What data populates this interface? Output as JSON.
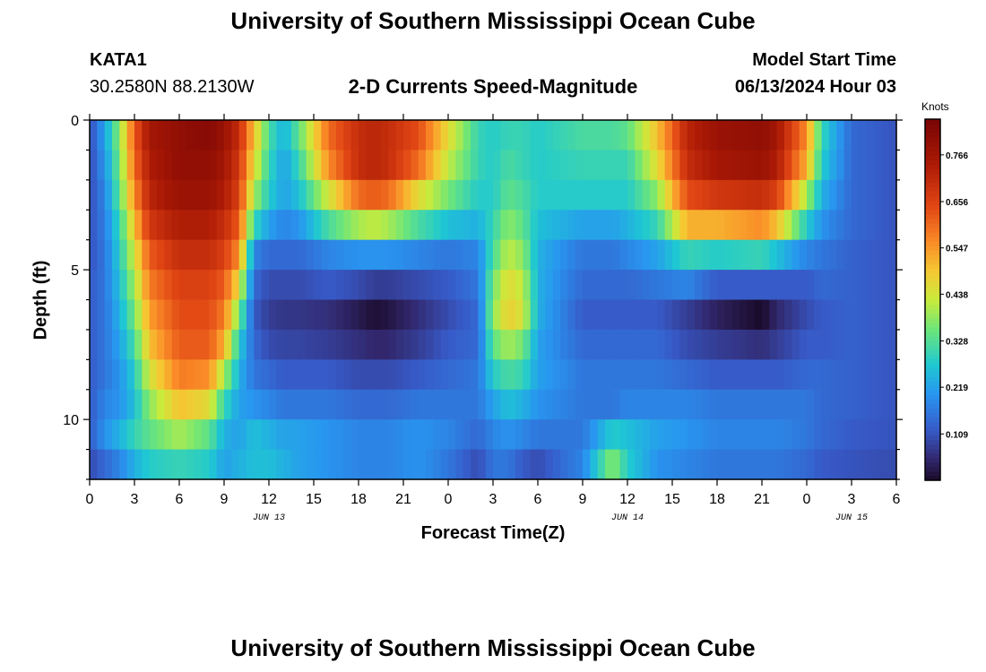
{
  "header": {
    "title_top": "University of Southern Mississippi Ocean Cube",
    "title_bottom": "University of Southern Mississippi Ocean Cube",
    "station_id": "KATA1",
    "station_coords": "30.2580N  88.2130W",
    "model_start_label": "Model Start Time",
    "model_start_value": "06/13/2024 Hour 03"
  },
  "chart_data": {
    "type": "heatmap",
    "title": "2-D Currents Speed-Magnitude",
    "xlabel": "Forecast Time(Z)",
    "ylabel": "Depth (ft)",
    "x_hours_range": [
      0,
      54
    ],
    "x_tick_labels": [
      "0",
      "3",
      "6",
      "9",
      "12",
      "15",
      "18",
      "21",
      "0",
      "3",
      "6",
      "9",
      "12",
      "15",
      "18",
      "21",
      "0",
      "3",
      "6"
    ],
    "date_labels": [
      {
        "hour": 12,
        "text": "JUN 13"
      },
      {
        "hour": 36,
        "text": "JUN 14"
      },
      {
        "hour": 51,
        "text": "JUN 15"
      }
    ],
    "y_range_ft": [
      0,
      12
    ],
    "y_ticks": [
      0,
      5,
      10
    ],
    "colorbar": {
      "label": "Knots",
      "range": [
        0.0,
        0.85
      ],
      "tick_values": [
        0.109,
        0.219,
        0.328,
        0.438,
        0.547,
        0.656,
        0.766
      ]
    },
    "depth_rows_ft": [
      0.5,
      1.5,
      2.5,
      3.5,
      4.5,
      5.5,
      6.5,
      7.5,
      8.5,
      9.5,
      10.5,
      11.5
    ],
    "speed_features": [
      {
        "hour": 0,
        "profile": [
          0.1,
          0.1,
          0.1,
          0.11,
          0.11,
          0.12,
          0.12,
          0.12,
          0.12,
          0.12,
          0.12,
          0.1
        ]
      },
      {
        "hour": 1,
        "profile": [
          0.22,
          0.2,
          0.18,
          0.17,
          0.16,
          0.16,
          0.16,
          0.16,
          0.16,
          0.18,
          0.2,
          0.14
        ]
      },
      {
        "hour": 2,
        "profile": [
          0.38,
          0.36,
          0.34,
          0.3,
          0.28,
          0.26,
          0.24,
          0.22,
          0.2,
          0.2,
          0.24,
          0.18
        ]
      },
      {
        "hour": 3,
        "profile": [
          0.62,
          0.6,
          0.56,
          0.5,
          0.44,
          0.4,
          0.36,
          0.32,
          0.28,
          0.26,
          0.3,
          0.24
        ]
      },
      {
        "hour": 4,
        "profile": [
          0.76,
          0.74,
          0.72,
          0.68,
          0.62,
          0.58,
          0.54,
          0.5,
          0.44,
          0.38,
          0.34,
          0.28
        ]
      },
      {
        "hour": 6,
        "profile": [
          0.8,
          0.8,
          0.78,
          0.74,
          0.7,
          0.66,
          0.64,
          0.62,
          0.58,
          0.5,
          0.4,
          0.3
        ]
      },
      {
        "hour": 8,
        "profile": [
          0.82,
          0.8,
          0.78,
          0.74,
          0.7,
          0.66,
          0.64,
          0.62,
          0.56,
          0.46,
          0.34,
          0.28
        ]
      },
      {
        "hour": 9,
        "profile": [
          0.78,
          0.76,
          0.74,
          0.7,
          0.66,
          0.62,
          0.58,
          0.52,
          0.4,
          0.3,
          0.24,
          0.22
        ]
      },
      {
        "hour": 10,
        "profile": [
          0.7,
          0.68,
          0.66,
          0.62,
          0.56,
          0.46,
          0.36,
          0.28,
          0.24,
          0.22,
          0.22,
          0.24
        ]
      },
      {
        "hour": 11,
        "profile": [
          0.5,
          0.46,
          0.4,
          0.3,
          0.18,
          0.14,
          0.12,
          0.14,
          0.16,
          0.2,
          0.26,
          0.26
        ]
      },
      {
        "hour": 12,
        "profile": [
          0.32,
          0.3,
          0.28,
          0.22,
          0.14,
          0.1,
          0.08,
          0.1,
          0.14,
          0.18,
          0.24,
          0.26
        ]
      },
      {
        "hour": 13,
        "profile": [
          0.24,
          0.22,
          0.22,
          0.18,
          0.14,
          0.1,
          0.07,
          0.09,
          0.12,
          0.16,
          0.22,
          0.24
        ]
      },
      {
        "hour": 14,
        "profile": [
          0.34,
          0.3,
          0.26,
          0.2,
          0.14,
          0.1,
          0.07,
          0.09,
          0.12,
          0.16,
          0.22,
          0.22
        ]
      },
      {
        "hour": 16,
        "profile": [
          0.6,
          0.56,
          0.44,
          0.32,
          0.18,
          0.12,
          0.06,
          0.08,
          0.12,
          0.16,
          0.2,
          0.2
        ]
      },
      {
        "hour": 18,
        "profile": [
          0.7,
          0.7,
          0.6,
          0.4,
          0.2,
          0.1,
          0.03,
          0.06,
          0.1,
          0.14,
          0.18,
          0.18
        ]
      },
      {
        "hour": 19,
        "profile": [
          0.72,
          0.72,
          0.62,
          0.42,
          0.2,
          0.08,
          0.01,
          0.05,
          0.1,
          0.14,
          0.18,
          0.18
        ]
      },
      {
        "hour": 20,
        "profile": [
          0.7,
          0.7,
          0.6,
          0.4,
          0.2,
          0.08,
          0.02,
          0.05,
          0.1,
          0.14,
          0.18,
          0.18
        ]
      },
      {
        "hour": 22,
        "profile": [
          0.64,
          0.6,
          0.46,
          0.32,
          0.18,
          0.1,
          0.06,
          0.08,
          0.12,
          0.16,
          0.2,
          0.2
        ]
      },
      {
        "hour": 24,
        "profile": [
          0.46,
          0.42,
          0.36,
          0.26,
          0.16,
          0.12,
          0.1,
          0.12,
          0.14,
          0.16,
          0.18,
          0.16
        ]
      },
      {
        "hour": 26,
        "profile": [
          0.3,
          0.3,
          0.28,
          0.24,
          0.18,
          0.16,
          0.14,
          0.14,
          0.16,
          0.16,
          0.14,
          0.1
        ]
      },
      {
        "hour": 27,
        "profile": [
          0.28,
          0.28,
          0.28,
          0.3,
          0.32,
          0.36,
          0.38,
          0.34,
          0.28,
          0.22,
          0.18,
          0.16
        ]
      },
      {
        "hour": 28,
        "profile": [
          0.3,
          0.32,
          0.34,
          0.38,
          0.42,
          0.46,
          0.48,
          0.4,
          0.32,
          0.26,
          0.2,
          0.16
        ]
      },
      {
        "hour": 29,
        "profile": [
          0.3,
          0.3,
          0.32,
          0.34,
          0.38,
          0.42,
          0.44,
          0.36,
          0.3,
          0.24,
          0.18,
          0.12
        ]
      },
      {
        "hour": 30,
        "profile": [
          0.28,
          0.28,
          0.28,
          0.26,
          0.24,
          0.24,
          0.24,
          0.22,
          0.22,
          0.2,
          0.16,
          0.1
        ]
      },
      {
        "hour": 33,
        "profile": [
          0.32,
          0.3,
          0.28,
          0.22,
          0.16,
          0.14,
          0.12,
          0.14,
          0.16,
          0.16,
          0.16,
          0.18
        ]
      },
      {
        "hour": 35,
        "profile": [
          0.32,
          0.3,
          0.28,
          0.22,
          0.16,
          0.14,
          0.12,
          0.14,
          0.16,
          0.16,
          0.28,
          0.38
        ]
      },
      {
        "hour": 36,
        "profile": [
          0.34,
          0.3,
          0.28,
          0.24,
          0.18,
          0.14,
          0.12,
          0.14,
          0.16,
          0.18,
          0.26,
          0.28
        ]
      },
      {
        "hour": 38,
        "profile": [
          0.5,
          0.46,
          0.38,
          0.3,
          0.22,
          0.16,
          0.12,
          0.14,
          0.16,
          0.18,
          0.22,
          0.2
        ]
      },
      {
        "hour": 40,
        "profile": [
          0.72,
          0.7,
          0.64,
          0.52,
          0.3,
          0.18,
          0.08,
          0.1,
          0.14,
          0.18,
          0.2,
          0.18
        ]
      },
      {
        "hour": 42,
        "profile": [
          0.78,
          0.76,
          0.68,
          0.52,
          0.28,
          0.12,
          0.04,
          0.08,
          0.12,
          0.16,
          0.18,
          0.16
        ]
      },
      {
        "hour": 45,
        "profile": [
          0.8,
          0.78,
          0.7,
          0.56,
          0.3,
          0.12,
          0.0,
          0.06,
          0.12,
          0.16,
          0.18,
          0.16
        ]
      },
      {
        "hour": 46,
        "profile": [
          0.76,
          0.74,
          0.66,
          0.5,
          0.26,
          0.12,
          0.05,
          0.08,
          0.12,
          0.16,
          0.18,
          0.16
        ]
      },
      {
        "hour": 48,
        "profile": [
          0.56,
          0.52,
          0.4,
          0.28,
          0.18,
          0.12,
          0.1,
          0.12,
          0.14,
          0.16,
          0.16,
          0.14
        ]
      },
      {
        "hour": 49,
        "profile": [
          0.3,
          0.28,
          0.24,
          0.2,
          0.16,
          0.14,
          0.12,
          0.12,
          0.14,
          0.14,
          0.14,
          0.12
        ]
      },
      {
        "hour": 51,
        "profile": [
          0.14,
          0.14,
          0.14,
          0.14,
          0.13,
          0.13,
          0.13,
          0.13,
          0.13,
          0.13,
          0.12,
          0.11
        ]
      },
      {
        "hour": 54,
        "profile": [
          0.11,
          0.11,
          0.11,
          0.11,
          0.11,
          0.11,
          0.11,
          0.11,
          0.11,
          0.11,
          0.11,
          0.1
        ]
      }
    ]
  }
}
